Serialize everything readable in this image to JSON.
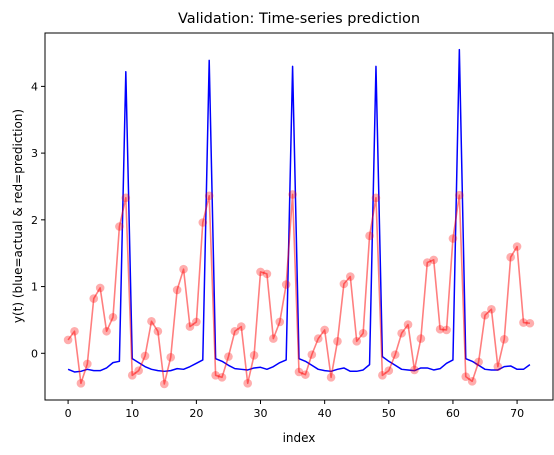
{
  "chart_data": {
    "type": "line",
    "title": "Validation: Time-series prediction",
    "xlabel": "index",
    "ylabel": "y(t) (blue=actual & red=prediction)",
    "xlim": [
      -3.6,
      75.6
    ],
    "ylim": [
      -0.7,
      4.8
    ],
    "xticks": [
      0,
      10,
      20,
      30,
      40,
      50,
      60,
      70
    ],
    "yticks": [
      0,
      1,
      2,
      3,
      4
    ],
    "grid": false,
    "legend": "none",
    "series": [
      {
        "color": "#0000ff",
        "style": "line",
        "x": [
          0,
          1,
          2,
          3,
          4,
          5,
          6,
          7,
          8,
          9,
          10,
          11,
          12,
          13,
          14,
          15,
          16,
          17,
          18,
          19,
          20,
          21,
          22,
          23,
          24,
          25,
          26,
          27,
          28,
          29,
          30,
          31,
          32,
          33,
          34,
          35,
          36,
          37,
          38,
          39,
          40,
          41,
          42,
          43,
          44,
          45,
          46,
          47,
          48,
          49,
          50,
          51,
          52,
          53,
          54,
          55,
          56,
          57,
          58,
          59,
          60,
          61,
          62,
          63,
          64,
          65,
          66,
          67,
          68,
          69,
          70,
          71,
          72
        ],
        "y": [
          -0.24,
          -0.28,
          -0.27,
          -0.24,
          -0.26,
          -0.26,
          -0.22,
          -0.14,
          -0.12,
          4.22,
          -0.08,
          -0.14,
          -0.2,
          -0.24,
          -0.26,
          -0.27,
          -0.26,
          -0.23,
          -0.24,
          -0.2,
          -0.15,
          -0.1,
          4.39,
          -0.08,
          -0.12,
          -0.18,
          -0.23,
          -0.24,
          -0.25,
          -0.22,
          -0.21,
          -0.24,
          -0.2,
          -0.14,
          -0.1,
          4.3,
          -0.08,
          -0.12,
          -0.18,
          -0.24,
          -0.26,
          -0.27,
          -0.24,
          -0.22,
          -0.27,
          -0.27,
          -0.25,
          -0.17,
          4.3,
          -0.05,
          -0.12,
          -0.18,
          -0.24,
          -0.25,
          -0.26,
          -0.22,
          -0.22,
          -0.25,
          -0.23,
          -0.15,
          -0.1,
          4.55,
          -0.08,
          -0.12,
          -0.18,
          -0.24,
          -0.25,
          -0.25,
          -0.2,
          -0.19,
          -0.24,
          -0.24,
          -0.17
        ]
      },
      {
        "color": "#ff0000",
        "style": "line+markers",
        "x": [
          0,
          1,
          2,
          3,
          4,
          5,
          6,
          7,
          8,
          9,
          10,
          11,
          12,
          13,
          14,
          15,
          16,
          17,
          18,
          19,
          20,
          21,
          22,
          23,
          24,
          25,
          26,
          27,
          28,
          29,
          30,
          31,
          32,
          33,
          34,
          35,
          36,
          37,
          38,
          39,
          40,
          41,
          42,
          43,
          44,
          45,
          46,
          47,
          48,
          49,
          50,
          51,
          52,
          53,
          54,
          55,
          56,
          57,
          58,
          59,
          60,
          61,
          62,
          63,
          64,
          65,
          66,
          67,
          68,
          69,
          70,
          71,
          72
        ],
        "y": [
          0.2,
          0.33,
          -0.45,
          -0.16,
          0.82,
          0.98,
          0.33,
          0.54,
          1.9,
          2.33,
          -0.33,
          -0.26,
          -0.04,
          0.48,
          0.33,
          -0.46,
          -0.06,
          0.95,
          1.26,
          0.4,
          0.47,
          1.96,
          2.36,
          -0.33,
          -0.36,
          -0.05,
          0.33,
          0.4,
          -0.45,
          -0.03,
          1.22,
          1.19,
          0.22,
          0.47,
          1.03,
          2.38,
          -0.28,
          -0.32,
          -0.02,
          0.22,
          0.35,
          -0.36,
          0.18,
          1.04,
          1.15,
          0.18,
          0.3,
          1.76,
          2.33,
          -0.33,
          -0.26,
          -0.02,
          0.3,
          0.43,
          -0.25,
          0.22,
          1.36,
          1.4,
          0.36,
          0.35,
          1.72,
          2.37,
          -0.35,
          -0.42,
          -0.13,
          0.57,
          0.66,
          -0.2,
          0.21,
          1.44,
          1.6,
          0.46,
          0.45
        ]
      }
    ]
  }
}
